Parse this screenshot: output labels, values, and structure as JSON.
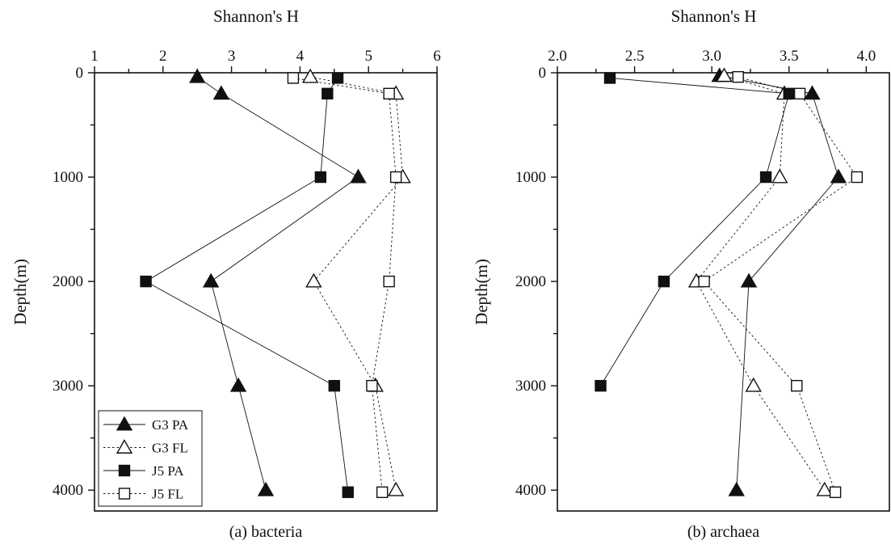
{
  "chart_data": [
    {
      "type": "scatter",
      "panel_label": "(a) bacteria",
      "xlabel": "Shannon's H",
      "ylabel": "Depth(m)",
      "xlim": [
        1,
        6
      ],
      "ylim": [
        0,
        4200
      ],
      "x_ticks": [
        1,
        2,
        3,
        4,
        5,
        6
      ],
      "x_tick_labels": [
        "1",
        "2",
        "3",
        "4",
        "5",
        "6"
      ],
      "y_ticks": [
        0,
        1000,
        2000,
        3000,
        4000
      ],
      "y_tick_labels": [
        "0",
        "1000",
        "2000",
        "3000",
        "4000"
      ],
      "x_axis_position": "top",
      "y_reversed": true,
      "grid": false,
      "legend_position": "bottom-left",
      "series": [
        {
          "name": "G3 PA",
          "marker": "filled-triangle",
          "line": "solid",
          "points": [
            {
              "x": 2.5,
              "y": 40
            },
            {
              "x": 2.85,
              "y": 200
            },
            {
              "x": 4.85,
              "y": 1000
            },
            {
              "x": 2.7,
              "y": 2000
            },
            {
              "x": 3.1,
              "y": 3000
            },
            {
              "x": 3.5,
              "y": 4000
            }
          ]
        },
        {
          "name": "G3 FL",
          "marker": "open-triangle",
          "line": "dotted",
          "points": [
            {
              "x": 4.15,
              "y": 40
            },
            {
              "x": 5.4,
              "y": 200
            },
            {
              "x": 5.5,
              "y": 1000
            },
            {
              "x": 4.2,
              "y": 2000
            },
            {
              "x": 5.1,
              "y": 3000
            },
            {
              "x": 5.4,
              "y": 4000
            }
          ]
        },
        {
          "name": "J5 PA",
          "marker": "filled-square",
          "line": "solid",
          "points": [
            {
              "x": 4.55,
              "y": 50
            },
            {
              "x": 4.4,
              "y": 200
            },
            {
              "x": 4.3,
              "y": 1000
            },
            {
              "x": 1.75,
              "y": 2000
            },
            {
              "x": 4.5,
              "y": 3000
            },
            {
              "x": 4.7,
              "y": 4020
            }
          ]
        },
        {
          "name": "J5 FL",
          "marker": "open-square",
          "line": "dotted",
          "points": [
            {
              "x": 3.9,
              "y": 50
            },
            {
              "x": 5.3,
              "y": 200
            },
            {
              "x": 5.4,
              "y": 1000
            },
            {
              "x": 5.3,
              "y": 2000
            },
            {
              "x": 5.05,
              "y": 3000
            },
            {
              "x": 5.2,
              "y": 4020
            }
          ]
        }
      ]
    },
    {
      "type": "scatter",
      "panel_label": "(b) archaea",
      "xlabel": "Shannon's H",
      "ylabel": "Depth(m)",
      "xlim": [
        2.0,
        4.15
      ],
      "ylim": [
        0,
        4200
      ],
      "x_ticks": [
        2.0,
        2.5,
        3.0,
        3.5,
        4.0
      ],
      "x_tick_labels": [
        "2.0",
        "2.5",
        "3.0",
        "3.5",
        "4.0"
      ],
      "y_ticks": [
        0,
        1000,
        2000,
        3000,
        4000
      ],
      "y_tick_labels": [
        "0",
        "1000",
        "2000",
        "3000",
        "4000"
      ],
      "x_axis_position": "top",
      "y_reversed": true,
      "grid": false,
      "legend_position": "none",
      "series": [
        {
          "name": "G3 PA",
          "marker": "filled-triangle",
          "line": "solid",
          "points": [
            {
              "x": 3.05,
              "y": 30
            },
            {
              "x": 3.65,
              "y": 200
            },
            {
              "x": 3.82,
              "y": 1000
            },
            {
              "x": 3.24,
              "y": 2000
            },
            {
              "x": 3.16,
              "y": 4000
            }
          ]
        },
        {
          "name": "G3 FL",
          "marker": "open-triangle",
          "line": "dotted",
          "points": [
            {
              "x": 3.08,
              "y": 30
            },
            {
              "x": 3.47,
              "y": 200
            },
            {
              "x": 3.44,
              "y": 1000
            },
            {
              "x": 2.9,
              "y": 2000
            },
            {
              "x": 3.27,
              "y": 3000
            },
            {
              "x": 3.73,
              "y": 4000
            }
          ]
        },
        {
          "name": "J5 PA",
          "marker": "filled-square",
          "line": "solid",
          "points": [
            {
              "x": 2.34,
              "y": 50
            },
            {
              "x": 3.5,
              "y": 200
            },
            {
              "x": 3.35,
              "y": 1000
            },
            {
              "x": 2.69,
              "y": 2000
            },
            {
              "x": 2.28,
              "y": 3000
            }
          ]
        },
        {
          "name": "J5 FL",
          "marker": "open-square",
          "line": "dotted",
          "points": [
            {
              "x": 3.17,
              "y": 40
            },
            {
              "x": 3.57,
              "y": 200
            },
            {
              "x": 3.94,
              "y": 1000
            },
            {
              "x": 2.95,
              "y": 2000
            },
            {
              "x": 3.55,
              "y": 3000
            },
            {
              "x": 3.8,
              "y": 4020
            }
          ]
        }
      ]
    }
  ]
}
